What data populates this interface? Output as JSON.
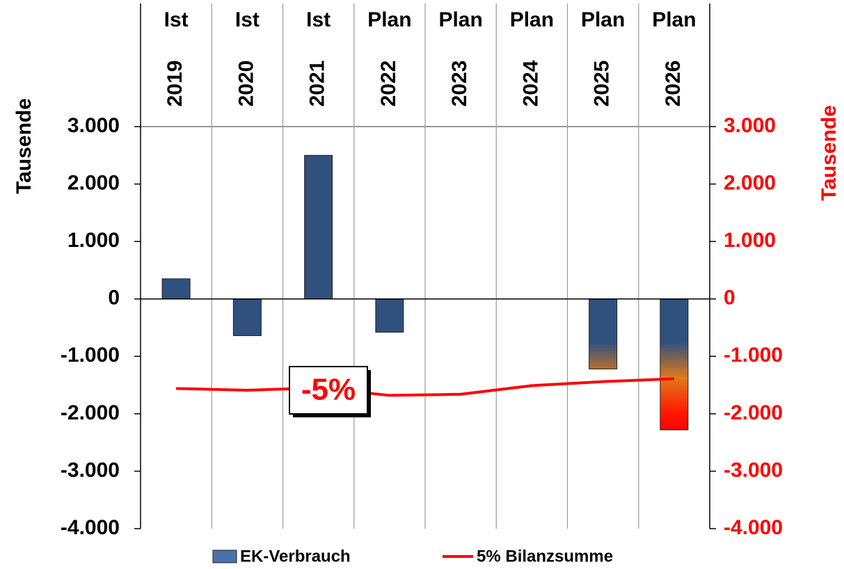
{
  "chart_data": {
    "type": "bar_line",
    "category_groups": [
      "Ist",
      "Ist",
      "Ist",
      "Plan",
      "Plan",
      "Plan",
      "Plan",
      "Plan"
    ],
    "categories": [
      "2019",
      "2020",
      "2021",
      "2022",
      "2023",
      "2024",
      "2025",
      "2026"
    ],
    "ylabel": "Tausende",
    "y2label": "Tausende",
    "ylim": [
      -4000,
      3000
    ],
    "yticks": [
      {
        "value": 3000,
        "label": "3.000"
      },
      {
        "value": 2000,
        "label": "2.000"
      },
      {
        "value": 1000,
        "label": "1.000"
      },
      0,
      {
        "value": -1000,
        "label": "-1.000"
      },
      {
        "value": -2000,
        "label": "-2.000"
      },
      {
        "value": -3000,
        "label": "-3.000"
      },
      {
        "value": -4000,
        "label": "-4.000"
      }
    ],
    "y2lim": [
      -4000,
      3000
    ],
    "y2ticks": [
      {
        "value": 3000,
        "label": "3.000"
      },
      {
        "value": 2000,
        "label": "2.000"
      },
      {
        "value": 1000,
        "label": "1.000"
      },
      0,
      {
        "value": -1000,
        "label": "-1.000"
      },
      {
        "value": -2000,
        "label": "-2.000"
      },
      {
        "value": -3000,
        "label": "-3.000"
      },
      {
        "value": -4000,
        "label": "-4.000"
      }
    ],
    "y2color": "#ff0000",
    "series": [
      {
        "name": "EK-Verbrauch",
        "type": "bar",
        "color": "#30507d",
        "values": [
          350,
          -640,
          2500,
          -580,
          null,
          null,
          -1220,
          -2280
        ]
      },
      {
        "name": "5% Bilanzsumme",
        "type": "line",
        "axis": "y2",
        "color": "#ff0000",
        "values": [
          -1560,
          -1590,
          -1550,
          -1680,
          -1660,
          -1510,
          -1440,
          -1390
        ]
      }
    ],
    "annotation": "-5%"
  }
}
